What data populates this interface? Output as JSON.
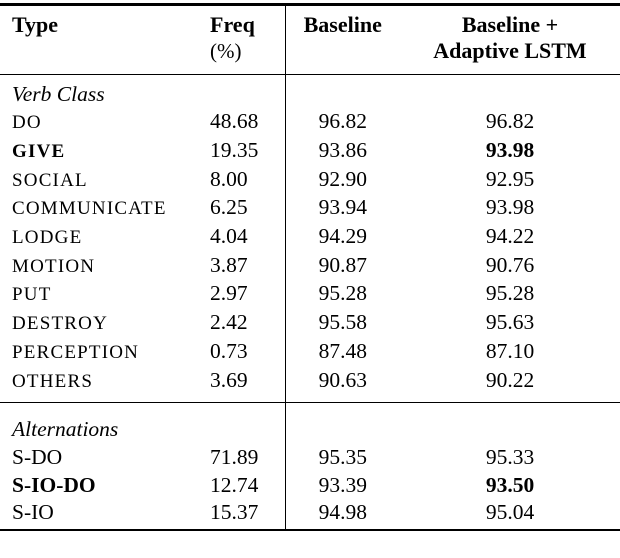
{
  "page": {
    "background": "#ffffff",
    "text_color": "#000000",
    "rule_color": "#000000"
  },
  "table": {
    "header": {
      "type": "Type",
      "freq": "Freq",
      "freq_unit": "(%)",
      "baseline": "Baseline",
      "adaptive_line1": "Baseline +",
      "adaptive_line2": "Adaptive LSTM"
    },
    "sections": [
      {
        "title": "Verb Class",
        "rows": [
          {
            "type": "DO",
            "freq": "48.68",
            "baseline": "96.82",
            "adaptive": "96.82"
          },
          {
            "type": "GIVE",
            "freq": "19.35",
            "baseline": "93.86",
            "adaptive": "93.98",
            "bold": true
          },
          {
            "type": "SOCIAL",
            "freq": "8.00",
            "baseline": "92.90",
            "adaptive": "92.95"
          },
          {
            "type": "COMMUNICATE",
            "freq": "6.25",
            "baseline": "93.94",
            "adaptive": "93.98"
          },
          {
            "type": "LODGE",
            "freq": "4.04",
            "baseline": "94.29",
            "adaptive": "94.22"
          },
          {
            "type": "MOTION",
            "freq": "3.87",
            "baseline": "90.87",
            "adaptive": "90.76"
          },
          {
            "type": "PUT",
            "freq": "2.97",
            "baseline": "95.28",
            "adaptive": "95.28"
          },
          {
            "type": "DESTROY",
            "freq": "2.42",
            "baseline": "95.58",
            "adaptive": "95.63"
          },
          {
            "type": "PERCEPTION",
            "freq": "0.73",
            "baseline": "87.48",
            "adaptive": "87.10"
          },
          {
            "type": "OTHERS",
            "freq": "3.69",
            "baseline": "90.63",
            "adaptive": "90.22"
          }
        ]
      },
      {
        "title": "Alternations",
        "rows": [
          {
            "type": "S-DO",
            "freq": "71.89",
            "baseline": "95.35",
            "adaptive": "95.33"
          },
          {
            "type": "S-IO-DO",
            "freq": "12.74",
            "baseline": "93.39",
            "adaptive": "93.50",
            "bold": true
          },
          {
            "type": "S-IO",
            "freq": "15.37",
            "baseline": "94.98",
            "adaptive": "95.04"
          }
        ]
      }
    ]
  }
}
